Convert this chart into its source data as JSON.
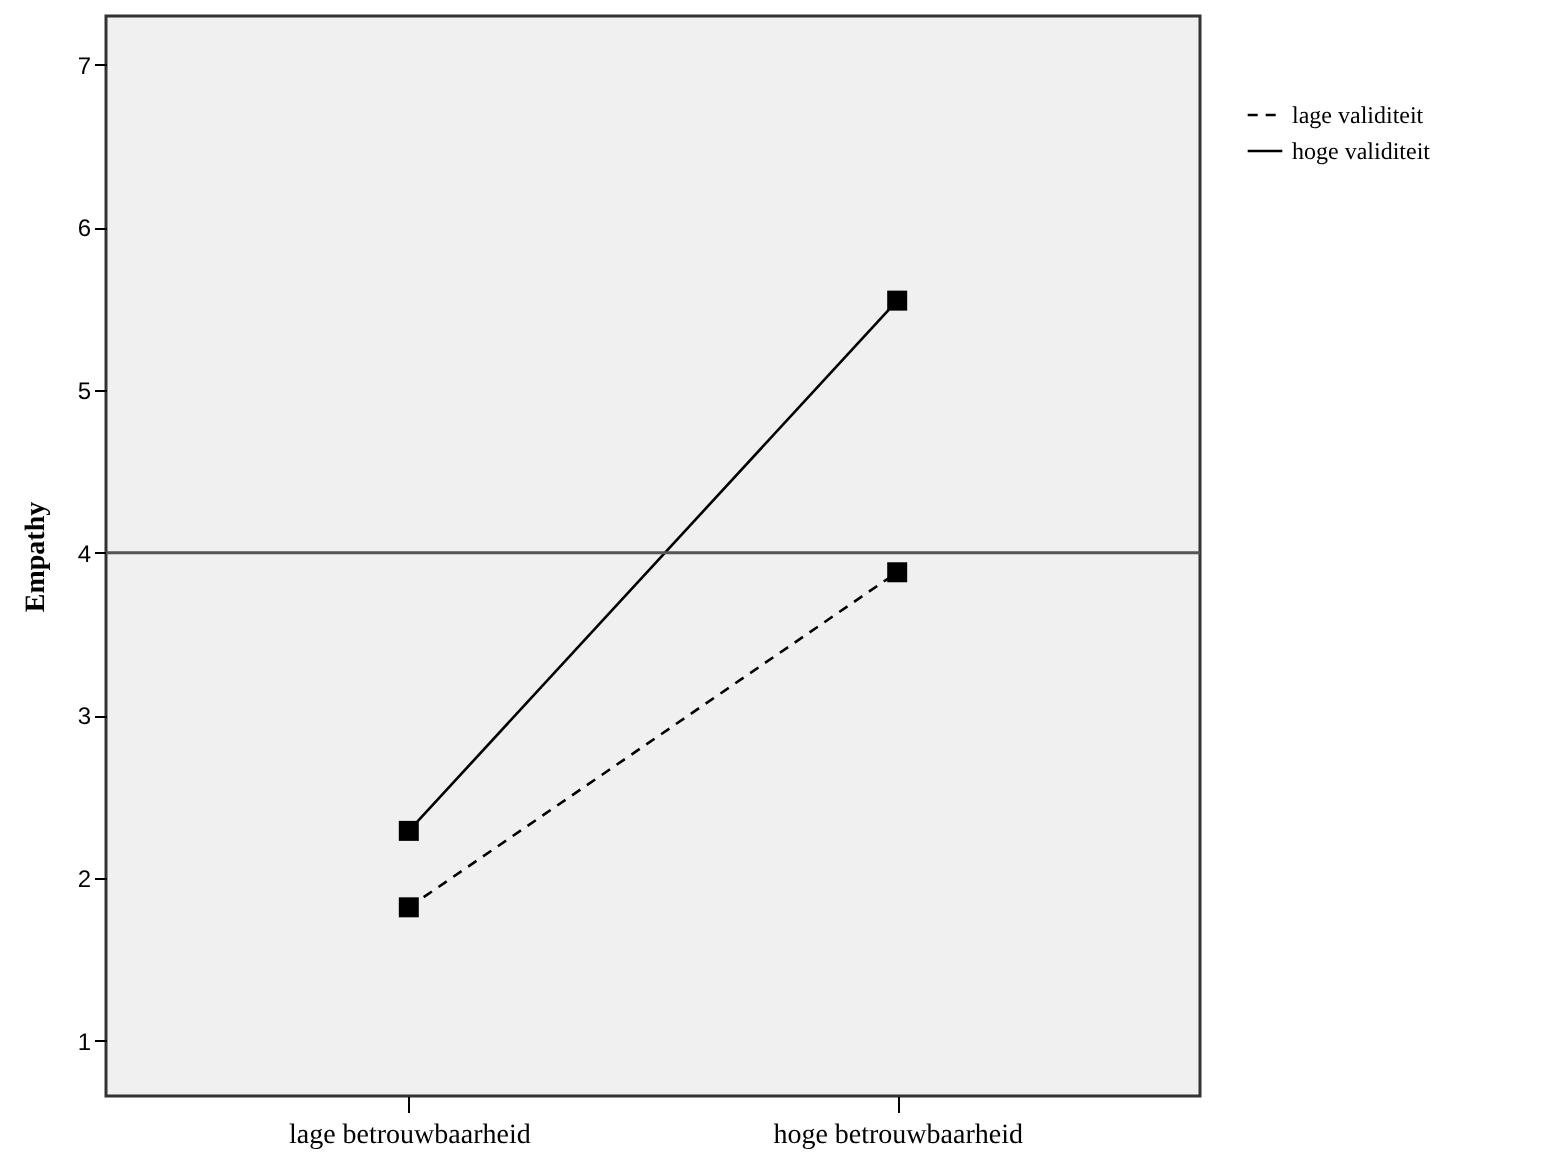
{
  "chart_data": {
    "type": "line",
    "ylabel": "Empathy",
    "categories": [
      "lage betrouwbaarheid",
      "hoge betrouwbaarheid"
    ],
    "series": [
      {
        "name": "lage validiteit",
        "color": "#000000",
        "line_style": "dashed",
        "values": [
          1.82,
          3.88
        ]
      },
      {
        "name": "hoge validiteit",
        "color": "#000000",
        "line_style": "solid",
        "values": [
          2.29,
          5.55
        ]
      }
    ],
    "ylim": [
      0.66,
      7.3
    ],
    "yticks": [
      1,
      2,
      3,
      4,
      5,
      6,
      7
    ],
    "ref_lines": [
      {
        "axis": "y",
        "value": 4,
        "color": "#555555"
      }
    ],
    "marker": "square",
    "legend": "top right",
    "grid": false
  }
}
